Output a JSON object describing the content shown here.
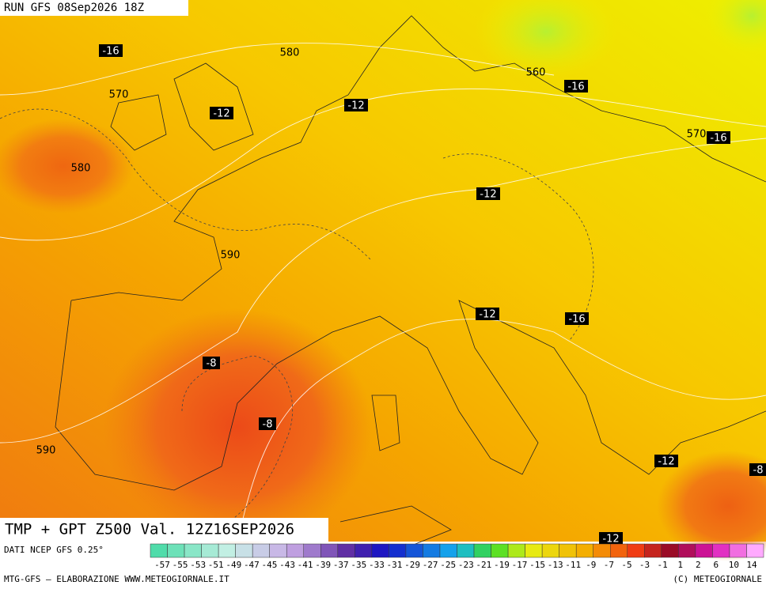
{
  "header": {
    "run": "RUN GFS 08Sep2026 18Z"
  },
  "map": {
    "title": "TMP + GPT Z500 Val. 12Z16SEP2026",
    "labels": [
      "-16",
      "580",
      "570",
      "-12",
      "-12",
      "560",
      "-16",
      "570",
      "-16",
      "580",
      "-12",
      "590",
      "-12",
      "-16",
      "-8",
      "-8",
      "590",
      "-12",
      "-8",
      "-12"
    ]
  },
  "legend": {
    "source": "DATI NCEP GFS 0.25°",
    "ticks": [
      "-57",
      "-55",
      "-53",
      "-51",
      "-49",
      "-47",
      "-45",
      "-43",
      "-41",
      "-39",
      "-37",
      "-35",
      "-33",
      "-31",
      "-29",
      "-27",
      "-25",
      "-23",
      "-21",
      "-19",
      "-17",
      "-15",
      "-13",
      "-11",
      "-9",
      "-7",
      "-5",
      "-3",
      "-1",
      "1",
      "2",
      "6",
      "10",
      "14"
    ]
  },
  "footer": {
    "left": "MTG-GFS – ELABORAZIONE WWW.METEOGIORNALE.IT",
    "right": "(C) METEOGIORNALE"
  }
}
